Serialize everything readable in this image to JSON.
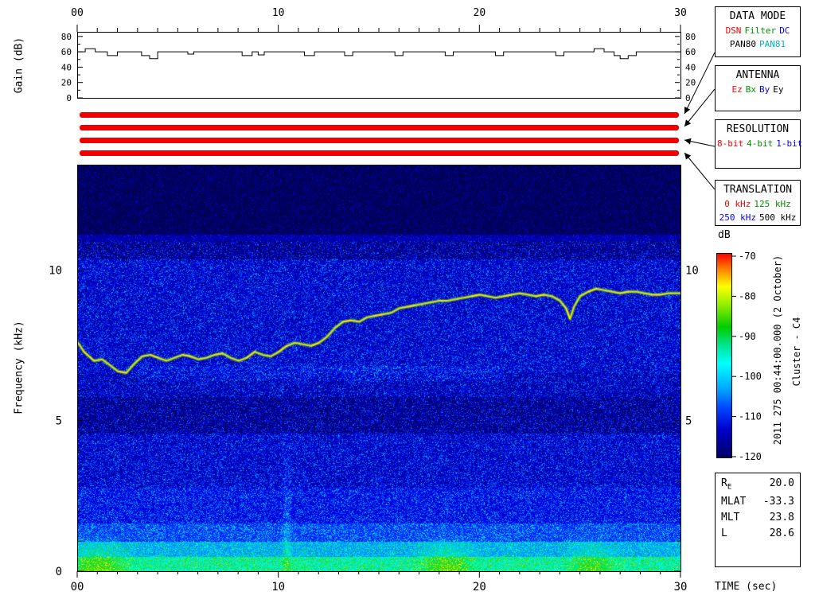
{
  "side_text": {
    "timestamp": "2011 275 00:44:00.000 (2 October)",
    "spacecraft": "Cluster - C4"
  },
  "status_bars": {
    "color": "#f00000",
    "bars": [
      "data-mode",
      "antenna",
      "resolution",
      "translation"
    ]
  },
  "legend_boxes": [
    {
      "title": "DATA MODE",
      "rows": [
        [
          {
            "t": "DSN",
            "c": "#ff0000"
          },
          {
            "t": "Filter",
            "c": "#009000"
          },
          {
            "t": "DC",
            "c": "#0000ff"
          }
        ],
        [
          {
            "t": "PAN80",
            "c": "#000000"
          },
          {
            "t": "PAN81",
            "c": "#00b0c0"
          }
        ]
      ]
    },
    {
      "title": "ANTENNA",
      "rows": [
        [
          {
            "t": "Ez",
            "c": "#ff0000"
          },
          {
            "t": "Bx",
            "c": "#009000"
          },
          {
            "t": "By",
            "c": "#0000ff"
          },
          {
            "t": "Ey",
            "c": "#000000"
          }
        ]
      ]
    },
    {
      "title": "RESOLUTION",
      "rows": [
        [
          {
            "t": "8-bit",
            "c": "#ff0000"
          },
          {
            "t": "4-bit",
            "c": "#009000"
          },
          {
            "t": "1-bit",
            "c": "#0000ff"
          }
        ]
      ]
    },
    {
      "title": "TRANSLATION",
      "rows": [
        [
          {
            "t": "0 kHz",
            "c": "#ff0000"
          },
          {
            "t": "125 kHz",
            "c": "#009000"
          }
        ],
        [
          {
            "t": "250 kHz",
            "c": "#0000ff"
          },
          {
            "t": "500 kHz",
            "c": "#000000"
          }
        ]
      ]
    }
  ],
  "info_box": {
    "rows": [
      {
        "label": "R",
        "sub": "E",
        "value": "20.0"
      },
      {
        "label": "MLAT",
        "value": "-33.3"
      },
      {
        "label": "MLT",
        "value": "23.8"
      },
      {
        "label": "L",
        "value": "28.6"
      }
    ]
  },
  "chart_data": [
    {
      "type": "line",
      "title": "Receiver gain vs time",
      "ylabel": "Gain (dB)",
      "xlim": [
        0,
        30
      ],
      "ylim": [
        0,
        85
      ],
      "y_ticks": [
        0,
        20,
        40,
        60,
        80
      ],
      "y_minor_ticks": [
        10,
        30,
        50,
        70
      ],
      "x_ticks": [
        0,
        10,
        20,
        30
      ],
      "x_tick_labels": [
        "00",
        "10",
        "20",
        "30"
      ],
      "series": [
        {
          "name": "gain",
          "color": "#000000",
          "step": true,
          "points": [
            [
              0,
              60
            ],
            [
              0.4,
              60
            ],
            [
              0.4,
              64
            ],
            [
              0.9,
              64
            ],
            [
              0.9,
              60
            ],
            [
              1.5,
              60
            ],
            [
              1.5,
              55
            ],
            [
              2.0,
              55
            ],
            [
              2.0,
              60
            ],
            [
              3.2,
              60
            ],
            [
              3.2,
              55
            ],
            [
              3.6,
              55
            ],
            [
              3.6,
              51
            ],
            [
              4.0,
              51
            ],
            [
              4.0,
              60
            ],
            [
              5.5,
              60
            ],
            [
              5.5,
              57
            ],
            [
              5.8,
              57
            ],
            [
              5.8,
              60
            ],
            [
              8.2,
              60
            ],
            [
              8.2,
              55
            ],
            [
              8.7,
              55
            ],
            [
              8.7,
              60
            ],
            [
              9.0,
              60
            ],
            [
              9.0,
              56
            ],
            [
              9.3,
              56
            ],
            [
              9.3,
              60
            ],
            [
              11.3,
              60
            ],
            [
              11.3,
              55
            ],
            [
              11.8,
              55
            ],
            [
              11.8,
              60
            ],
            [
              13.3,
              60
            ],
            [
              13.3,
              55
            ],
            [
              13.7,
              55
            ],
            [
              13.7,
              60
            ],
            [
              15.8,
              60
            ],
            [
              15.8,
              55
            ],
            [
              16.2,
              55
            ],
            [
              16.2,
              60
            ],
            [
              18.3,
              60
            ],
            [
              18.3,
              55
            ],
            [
              18.7,
              55
            ],
            [
              18.7,
              60
            ],
            [
              20.8,
              60
            ],
            [
              20.8,
              55
            ],
            [
              21.2,
              55
            ],
            [
              21.2,
              60
            ],
            [
              23.8,
              60
            ],
            [
              23.8,
              55
            ],
            [
              24.2,
              55
            ],
            [
              24.2,
              60
            ],
            [
              25.7,
              60
            ],
            [
              25.7,
              64
            ],
            [
              26.2,
              64
            ],
            [
              26.2,
              60
            ],
            [
              26.7,
              60
            ],
            [
              26.7,
              55
            ],
            [
              27.0,
              55
            ],
            [
              27.0,
              51
            ],
            [
              27.4,
              51
            ],
            [
              27.4,
              55
            ],
            [
              27.8,
              55
            ],
            [
              27.8,
              60
            ],
            [
              30,
              60
            ]
          ]
        }
      ]
    },
    {
      "type": "heatmap",
      "subtype": "spectrogram",
      "ylabel": "Frequency (kHz)",
      "xlabel": "TIME (sec)",
      "xlim": [
        0,
        30
      ],
      "ylim": [
        0,
        13.5
      ],
      "y_ticks": [
        0,
        5,
        10
      ],
      "x_ticks": [
        0,
        10,
        20,
        30
      ],
      "x_tick_labels": [
        "00",
        "10",
        "20",
        "30"
      ],
      "colorbar": {
        "label": "dB",
        "min": -120,
        "max": -70,
        "ticks": [
          -70,
          -80,
          -90,
          -100,
          -110,
          -120
        ]
      },
      "background_profile": [
        {
          "f_range": [
            11.2,
            13.5
          ],
          "db": -119
        },
        {
          "f_range": [
            10.4,
            11.2
          ],
          "db": -115
        },
        {
          "f_range": [
            6.6,
            10.4
          ],
          "db": -112
        },
        {
          "f_range": [
            5.8,
            6.6
          ],
          "db": -113
        },
        {
          "f_range": [
            4.6,
            5.8
          ],
          "db": -115
        },
        {
          "f_range": [
            2.8,
            4.6
          ],
          "db": -112
        },
        {
          "f_range": [
            1.6,
            2.8
          ],
          "db": -110
        },
        {
          "f_range": [
            1.0,
            1.6
          ],
          "db": -106
        },
        {
          "f_range": [
            0.5,
            1.0
          ],
          "db": -100
        },
        {
          "f_range": [
            0.0,
            0.5
          ],
          "db": -93
        }
      ],
      "features": [
        {
          "type": "vertical-burst",
          "t": 10.4,
          "f_max": 5.5
        },
        {
          "type": "faint-band",
          "f": [
            6.35,
            6.85
          ],
          "t": [
            3,
            21
          ]
        }
      ],
      "trace": {
        "name": "emission frequency track",
        "color": "#c6e41e",
        "points": [
          [
            0,
            7.6
          ],
          [
            0.3,
            7.3
          ],
          [
            0.8,
            7.0
          ],
          [
            1.2,
            7.05
          ],
          [
            1.6,
            6.85
          ],
          [
            2.0,
            6.65
          ],
          [
            2.4,
            6.6
          ],
          [
            2.8,
            6.9
          ],
          [
            3.2,
            7.15
          ],
          [
            3.6,
            7.2
          ],
          [
            4.0,
            7.1
          ],
          [
            4.4,
            7.0
          ],
          [
            4.8,
            7.1
          ],
          [
            5.2,
            7.2
          ],
          [
            5.6,
            7.15
          ],
          [
            6.0,
            7.05
          ],
          [
            6.4,
            7.1
          ],
          [
            6.8,
            7.2
          ],
          [
            7.2,
            7.25
          ],
          [
            7.6,
            7.1
          ],
          [
            8.0,
            7.0
          ],
          [
            8.4,
            7.1
          ],
          [
            8.8,
            7.3
          ],
          [
            9.2,
            7.2
          ],
          [
            9.6,
            7.15
          ],
          [
            10.0,
            7.3
          ],
          [
            10.4,
            7.5
          ],
          [
            10.8,
            7.6
          ],
          [
            11.2,
            7.55
          ],
          [
            11.6,
            7.5
          ],
          [
            12.0,
            7.6
          ],
          [
            12.4,
            7.8
          ],
          [
            12.8,
            8.1
          ],
          [
            13.2,
            8.3
          ],
          [
            13.6,
            8.35
          ],
          [
            14.0,
            8.3
          ],
          [
            14.4,
            8.45
          ],
          [
            14.8,
            8.5
          ],
          [
            15.2,
            8.55
          ],
          [
            15.6,
            8.6
          ],
          [
            16.0,
            8.75
          ],
          [
            16.4,
            8.8
          ],
          [
            16.8,
            8.85
          ],
          [
            17.2,
            8.9
          ],
          [
            17.6,
            8.95
          ],
          [
            18.0,
            9.0
          ],
          [
            18.4,
            9.0
          ],
          [
            18.8,
            9.05
          ],
          [
            19.2,
            9.1
          ],
          [
            19.6,
            9.15
          ],
          [
            20.0,
            9.2
          ],
          [
            20.4,
            9.15
          ],
          [
            20.8,
            9.1
          ],
          [
            21.2,
            9.15
          ],
          [
            21.6,
            9.2
          ],
          [
            22.0,
            9.25
          ],
          [
            22.4,
            9.2
          ],
          [
            22.8,
            9.15
          ],
          [
            23.2,
            9.2
          ],
          [
            23.6,
            9.15
          ],
          [
            24.0,
            9.0
          ],
          [
            24.3,
            8.75
          ],
          [
            24.5,
            8.4
          ],
          [
            24.7,
            8.8
          ],
          [
            25.0,
            9.15
          ],
          [
            25.4,
            9.3
          ],
          [
            25.8,
            9.4
          ],
          [
            26.2,
            9.35
          ],
          [
            26.6,
            9.3
          ],
          [
            27.0,
            9.25
          ],
          [
            27.4,
            9.3
          ],
          [
            27.8,
            9.3
          ],
          [
            28.2,
            9.25
          ],
          [
            28.6,
            9.2
          ],
          [
            29.0,
            9.2
          ],
          [
            29.4,
            9.25
          ],
          [
            30,
            9.25
          ]
        ]
      }
    }
  ]
}
